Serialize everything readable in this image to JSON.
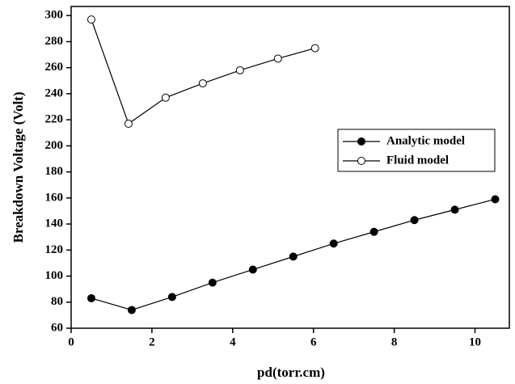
{
  "chart_data": {
    "type": "line",
    "x_label": "pd(torr.cm)",
    "y_label": "Breakdown Voltage (Volt)",
    "xlim": [
      0,
      10.85
    ],
    "xticks": [
      0,
      2,
      4,
      6,
      8,
      10
    ],
    "ylim": [
      60,
      307
    ],
    "yticks": [
      60,
      80,
      100,
      120,
      140,
      160,
      180,
      200,
      220,
      240,
      260,
      280,
      300
    ],
    "legend": "center right",
    "series": [
      {
        "name": "Analytic model",
        "color": "#000000",
        "marker": "filled",
        "x": [
          0.5,
          1.5,
          2.5,
          3.5,
          4.5,
          5.5,
          6.5,
          7.5,
          8.5,
          9.5,
          10.5
        ],
        "values": [
          83,
          74,
          84,
          95,
          105,
          115,
          125,
          134,
          143,
          151,
          159
        ]
      },
      {
        "name": "Fluid model",
        "color": "#000000",
        "marker": "open",
        "x": [
          0.5,
          1.42,
          2.34,
          3.26,
          4.18,
          5.12,
          6.04
        ],
        "values": [
          297,
          217,
          237,
          248,
          258,
          267,
          275
        ]
      }
    ]
  }
}
